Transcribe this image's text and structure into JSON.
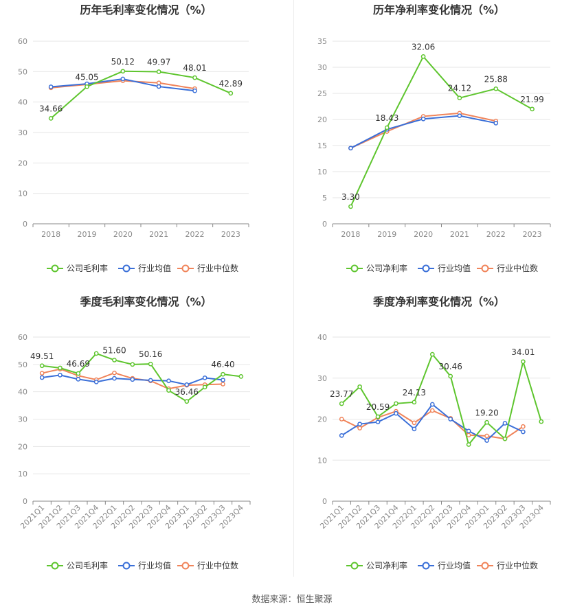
{
  "colors": {
    "company": "#5ec52e",
    "industry_avg": "#3a6fd8",
    "industry_median": "#f0845a"
  },
  "legend_labels": {
    "gross": [
      "公司毛利率",
      "行业均值",
      "行业中位数"
    ],
    "net": [
      "公司净利率",
      "行业均值",
      "行业中位数"
    ]
  },
  "source_label": "数据来源：",
  "source_value": "恒生聚源",
  "chart_data": [
    {
      "type": "line",
      "title": "历年毛利率变化情况（%）",
      "categories": [
        "2018",
        "2019",
        "2020",
        "2021",
        "2022",
        "2023"
      ],
      "ylim": [
        0,
        60
      ],
      "yticks": [
        0,
        10,
        20,
        30,
        40,
        50,
        60
      ],
      "series": [
        {
          "name": "公司毛利率",
          "values": [
            34.66,
            45.05,
            50.12,
            49.97,
            48.01,
            42.89
          ],
          "labels": [
            "34.66",
            "45.05",
            "50.12",
            "49.97",
            "48.01",
            "42.89"
          ]
        },
        {
          "name": "行业均值",
          "values": [
            45.0,
            46.0,
            47.6,
            45.1,
            43.7,
            null
          ]
        },
        {
          "name": "行业中位数",
          "values": [
            44.7,
            45.8,
            47.0,
            46.3,
            44.4,
            null
          ]
        }
      ],
      "legend": "bottom"
    },
    {
      "type": "line",
      "title": "历年净利率变化情况（%）",
      "categories": [
        "2018",
        "2019",
        "2020",
        "2021",
        "2022",
        "2023"
      ],
      "ylim": [
        0,
        35
      ],
      "yticks": [
        0,
        5,
        10,
        15,
        20,
        25,
        30,
        35
      ],
      "series": [
        {
          "name": "公司净利率",
          "values": [
            3.3,
            18.43,
            32.06,
            24.12,
            25.88,
            21.99
          ],
          "labels": [
            "3.30",
            "18.43",
            "32.06",
            "24.12",
            "25.88",
            "21.99"
          ]
        },
        {
          "name": "行业均值",
          "values": [
            14.5,
            18.1,
            20.1,
            20.7,
            19.3,
            null
          ]
        },
        {
          "name": "行业中位数",
          "values": [
            14.5,
            17.7,
            20.6,
            21.2,
            19.7,
            null
          ]
        }
      ],
      "legend": "bottom"
    },
    {
      "type": "line",
      "title": "季度毛利率变化情况（%）",
      "categories": [
        "2021Q1",
        "2021Q2",
        "2021Q3",
        "2021Q4",
        "2022Q1",
        "2022Q2",
        "2022Q3",
        "2022Q4",
        "2023Q1",
        "2023Q2",
        "2023Q3",
        "2023Q4"
      ],
      "ylim": [
        0,
        60
      ],
      "yticks": [
        0,
        10,
        20,
        30,
        40,
        50,
        60
      ],
      "series": [
        {
          "name": "公司毛利率",
          "values": [
            49.51,
            48.7,
            46.69,
            54.0,
            51.6,
            50.0,
            50.16,
            40.5,
            36.46,
            41.7,
            46.4,
            45.6
          ],
          "labels": [
            "49.51",
            "",
            "46.69",
            "",
            "51.60",
            "",
            "50.16",
            "",
            "36.46",
            "",
            "46.40",
            ""
          ]
        },
        {
          "name": "行业均值",
          "values": [
            45.2,
            46.1,
            44.6,
            43.6,
            44.9,
            44.5,
            44.2,
            44.0,
            42.6,
            45.1,
            44.3,
            null
          ]
        },
        {
          "name": "行业中位数",
          "values": [
            46.8,
            48.3,
            45.9,
            44.4,
            46.9,
            44.9,
            44.0,
            41.1,
            42.4,
            42.6,
            42.8,
            null
          ]
        }
      ],
      "legend": "bottom"
    },
    {
      "type": "line",
      "title": "季度净利率变化情况（%）",
      "categories": [
        "2021Q1",
        "2021Q2",
        "2021Q3",
        "2021Q4",
        "2022Q1",
        "2022Q2",
        "2022Q3",
        "2022Q4",
        "2023Q1",
        "2023Q2",
        "2023Q3",
        "2023Q4"
      ],
      "ylim": [
        0,
        40
      ],
      "yticks": [
        0,
        10,
        20,
        30,
        40
      ],
      "series": [
        {
          "name": "公司净利率",
          "values": [
            23.77,
            27.9,
            20.59,
            23.8,
            24.13,
            35.8,
            30.46,
            13.8,
            19.2,
            15.2,
            34.01,
            19.4
          ],
          "labels": [
            "23.77",
            "",
            "20.59",
            "",
            "24.13",
            "",
            "30.46",
            "",
            "19.20",
            "",
            "34.01",
            ""
          ]
        },
        {
          "name": "行业均值",
          "values": [
            16.0,
            18.8,
            19.3,
            21.4,
            17.6,
            23.6,
            20.0,
            17.1,
            14.8,
            19.0,
            16.9,
            null
          ]
        },
        {
          "name": "行业中位数",
          "values": [
            20.0,
            17.8,
            20.4,
            21.9,
            19.1,
            22.1,
            20.2,
            16.1,
            15.9,
            15.2,
            18.2,
            null
          ]
        }
      ],
      "legend": "bottom"
    }
  ]
}
